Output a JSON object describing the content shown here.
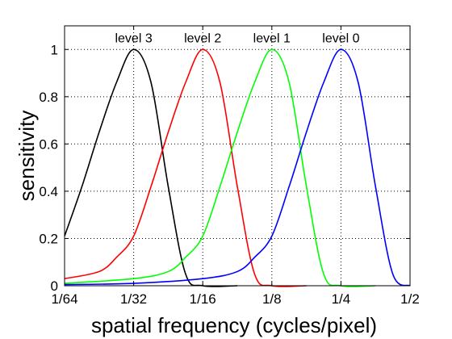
{
  "chart_data": {
    "type": "line",
    "xlabel": "spatial frequency (cycles/pixel)",
    "ylabel": "sensitivity",
    "x_scale": "log2",
    "xlim": [
      0.015625,
      0.5
    ],
    "ylim": [
      0,
      1.1
    ],
    "grid": true,
    "x_ticks": [
      {
        "value": 0.015625,
        "label": "1/64"
      },
      {
        "value": 0.03125,
        "label": "1/32"
      },
      {
        "value": 0.0625,
        "label": "1/16"
      },
      {
        "value": 0.125,
        "label": "1/8"
      },
      {
        "value": 0.25,
        "label": "1/4"
      },
      {
        "value": 0.5,
        "label": "1/2"
      }
    ],
    "y_ticks": [
      {
        "value": 0,
        "label": "0"
      },
      {
        "value": 0.2,
        "label": "0.2"
      },
      {
        "value": 0.4,
        "label": "0.4"
      },
      {
        "value": 0.6,
        "label": "0.6"
      },
      {
        "value": 0.8,
        "label": "0.8"
      },
      {
        "value": 1,
        "label": "1"
      }
    ],
    "series": [
      {
        "name": "level 3",
        "color": "#000000",
        "points": [
          [
            0.015625,
            0.21
          ],
          [
            0.0186,
            0.42
          ],
          [
            0.0221,
            0.65
          ],
          [
            0.0263,
            0.86
          ],
          [
            0.03125,
            1.0
          ],
          [
            0.0372,
            0.86
          ],
          [
            0.0442,
            0.42
          ],
          [
            0.0526,
            0.05
          ],
          [
            0.0625,
            0.0
          ],
          [
            0.0884,
            0.0
          ]
        ]
      },
      {
        "name": "level 2",
        "color": "#ff0000",
        "points": [
          [
            0.015625,
            0.03
          ],
          [
            0.0221,
            0.06
          ],
          [
            0.0263,
            0.12
          ],
          [
            0.03125,
            0.21
          ],
          [
            0.0372,
            0.42
          ],
          [
            0.0442,
            0.65
          ],
          [
            0.0526,
            0.86
          ],
          [
            0.0625,
            1.0
          ],
          [
            0.0743,
            0.86
          ],
          [
            0.0884,
            0.42
          ],
          [
            0.1051,
            0.05
          ],
          [
            0.125,
            0.0
          ],
          [
            0.1768,
            0.0
          ]
        ]
      },
      {
        "name": "level 1",
        "color": "#00ff00",
        "points": [
          [
            0.015625,
            0.01
          ],
          [
            0.03125,
            0.03
          ],
          [
            0.0442,
            0.06
          ],
          [
            0.0526,
            0.12
          ],
          [
            0.0625,
            0.21
          ],
          [
            0.0743,
            0.42
          ],
          [
            0.0884,
            0.65
          ],
          [
            0.1051,
            0.86
          ],
          [
            0.125,
            1.0
          ],
          [
            0.1487,
            0.86
          ],
          [
            0.1768,
            0.42
          ],
          [
            0.2102,
            0.05
          ],
          [
            0.25,
            0.0
          ],
          [
            0.3536,
            0.0
          ]
        ]
      },
      {
        "name": "level 0",
        "color": "#0000ff",
        "points": [
          [
            0.015625,
            0.005
          ],
          [
            0.03125,
            0.01
          ],
          [
            0.0625,
            0.03
          ],
          [
            0.0884,
            0.06
          ],
          [
            0.1051,
            0.12
          ],
          [
            0.125,
            0.21
          ],
          [
            0.1487,
            0.42
          ],
          [
            0.1768,
            0.65
          ],
          [
            0.2102,
            0.86
          ],
          [
            0.25,
            1.0
          ],
          [
            0.2973,
            0.86
          ],
          [
            0.3536,
            0.42
          ],
          [
            0.4204,
            0.05
          ],
          [
            0.5,
            0.0
          ]
        ]
      }
    ],
    "annotations": [
      {
        "text": "level 3",
        "x": 0.03125,
        "y": 1.03
      },
      {
        "text": "level 2",
        "x": 0.0625,
        "y": 1.03
      },
      {
        "text": "level 1",
        "x": 0.125,
        "y": 1.03
      },
      {
        "text": "level 0",
        "x": 0.25,
        "y": 1.03
      }
    ]
  }
}
